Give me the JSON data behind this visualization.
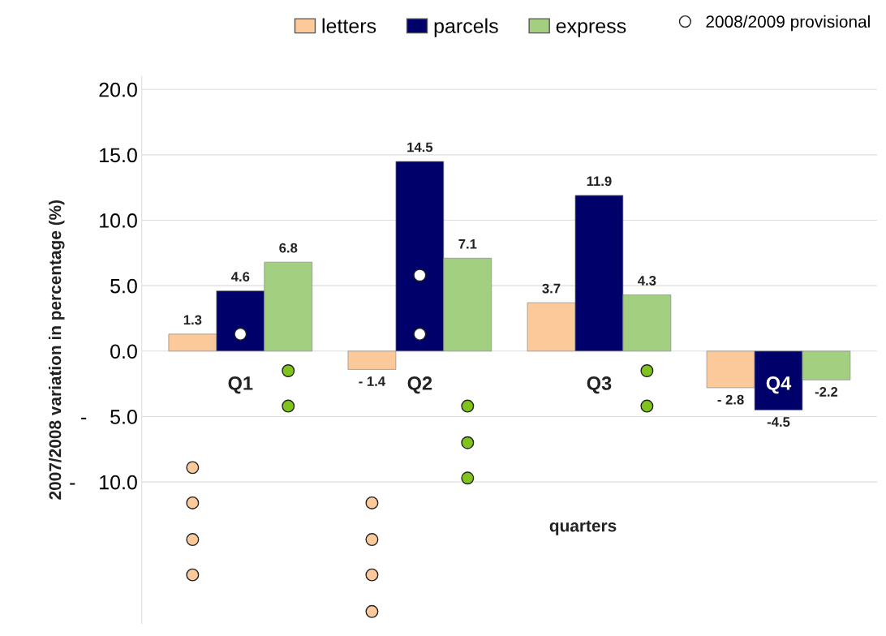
{
  "chart_data": {
    "type": "bar",
    "ylabel": "2007/2008 variation in percentage (%)",
    "xlabel": "quarters",
    "categories": [
      "Q1",
      "Q2",
      "Q3",
      "Q4"
    ],
    "series": [
      {
        "name": "letters",
        "color": "#fcc99b",
        "values": [
          1.3,
          -1.4,
          3.7,
          -2.8
        ],
        "value_labels": [
          "1.3",
          "- 1.4",
          "3.7",
          "- 2.8"
        ]
      },
      {
        "name": "parcels",
        "color": "#00006b",
        "values": [
          4.6,
          14.5,
          11.9,
          -4.5
        ],
        "value_labels": [
          "4.6",
          "14.5",
          "11.9",
          "-4.5"
        ]
      },
      {
        "name": "express",
        "color": "#a3cf80",
        "values": [
          6.8,
          7.1,
          4.3,
          -2.2
        ],
        "value_labels": [
          "6.8",
          "7.1",
          "4.3",
          "-2.2"
        ]
      },
      {
        "type": "scatter",
        "color": "#fcc99b",
        "x": [
          "Q1",
          "Q1",
          "Q1",
          "Q1",
          "Q2",
          "Q2",
          "Q2",
          "Q2"
        ],
        "values": [
          -8.9,
          -11.6,
          -14.4,
          -17.1,
          -11.6,
          -14.4,
          -17.1,
          -19.9
        ]
      },
      {
        "type": "scatter",
        "name": "2008/2009 provisional",
        "color": "#ffffff",
        "x": [
          "Q1",
          "Q2",
          "Q2"
        ],
        "values": [
          1.3,
          1.3,
          5.8
        ]
      },
      {
        "type": "scatter",
        "color": "#7fc31c",
        "x": [
          "Q1",
          "Q1",
          "Q2",
          "Q2",
          "Q2",
          "Q3",
          "Q3"
        ],
        "values": [
          -1.5,
          -4.2,
          -4.2,
          -7.0,
          -9.7,
          -1.5,
          -4.2
        ]
      }
    ],
    "ylim": [
      -20.8,
      21
    ],
    "yticks": [
      {
        "value": -10,
        "label": "-    10.0"
      },
      {
        "value": -5,
        "label": "-    5.0"
      },
      {
        "value": 0,
        "label": "0.0"
      },
      {
        "value": 5,
        "label": "5.0"
      },
      {
        "value": 10,
        "label": "10.0"
      },
      {
        "value": 15,
        "label": "15.0"
      },
      {
        "value": 20,
        "label": "20.0"
      }
    ],
    "grid": "y",
    "legend": "top",
    "marker": "circle"
  }
}
